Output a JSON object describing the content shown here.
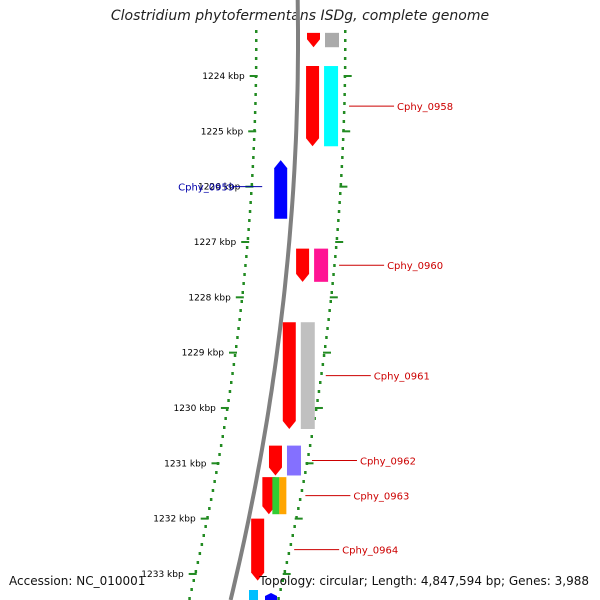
{
  "title": "Clostridium phytofermentans ISDg, complete genome",
  "accession": "Accession: NC_010001",
  "summary": "Topology: circular; Length: 4,847,594 bp; Genes: 3,988",
  "chart_data": {
    "type": "genome-map",
    "axis_unit": "kbp",
    "ruler": [
      {
        "kbp": 1224,
        "label": "1224 kbp"
      },
      {
        "kbp": 1225,
        "label": "1225 kbp"
      },
      {
        "kbp": 1226,
        "label": "1226 kbp"
      },
      {
        "kbp": 1227,
        "label": "1227 kbp"
      },
      {
        "kbp": 1228,
        "label": "1228 kbp"
      },
      {
        "kbp": 1229,
        "label": "1229 kbp"
      },
      {
        "kbp": 1230,
        "label": "1230 kbp"
      },
      {
        "kbp": 1231,
        "label": "1231 kbp"
      },
      {
        "kbp": 1232,
        "label": "1232 kbp"
      },
      {
        "kbp": 1233,
        "label": "1233 kbp"
      }
    ],
    "genes": [
      {
        "label": "",
        "strand": "+",
        "start": 1223.22,
        "end": 1223.48,
        "color": "#ff0000",
        "cog": "#aaaaaa"
      },
      {
        "label": "Cphy_0958",
        "strand": "+",
        "start": 1223.82,
        "end": 1225.27,
        "color": "#ff0000",
        "cog": "#00ffff"
      },
      {
        "label": "Cphy_0959",
        "strand": "-",
        "start": 1225.52,
        "end": 1226.58,
        "color": "#0000ff",
        "cog": ""
      },
      {
        "label": "Cphy_0960",
        "strand": "+",
        "start": 1227.12,
        "end": 1227.72,
        "color": "#ff0000",
        "cog": "#ff1493"
      },
      {
        "label": "Cphy_0961",
        "strand": "+",
        "start": 1228.45,
        "end": 1230.38,
        "color": "#ff0000",
        "cog": "#c0c0c0"
      },
      {
        "label": "Cphy_0962",
        "strand": "+",
        "start": 1230.68,
        "end": 1231.22,
        "color": "#ff0000",
        "cog": "#8470ff"
      },
      {
        "label": "Cphy_0963",
        "strand": "+",
        "start": 1231.25,
        "end": 1231.92,
        "color": "#ff0000",
        "cog": "#ffa500",
        "cog2": "#32cd32"
      },
      {
        "label": "Cphy_0964",
        "strand": "+",
        "start": 1232.0,
        "end": 1233.12,
        "color": "#ff0000",
        "cog": ""
      }
    ]
  }
}
